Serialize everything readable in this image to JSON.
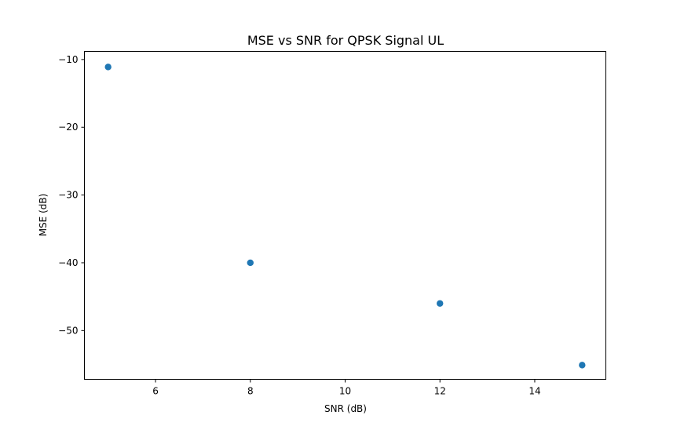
{
  "chart_data": {
    "type": "scatter",
    "title": "MSE vs SNR for QPSK Signal UL",
    "xlabel": "SNR (dB)",
    "ylabel": "MSE (dB)",
    "xlim": [
      4.5,
      15.5
    ],
    "ylim": [
      -57.2,
      -8.8
    ],
    "xticks": [
      6,
      8,
      10,
      12,
      14
    ],
    "xtick_labels": [
      "6",
      "8",
      "10",
      "12",
      "14"
    ],
    "yticks": [
      -10,
      -20,
      -30,
      -40,
      -50
    ],
    "ytick_labels": [
      "−10",
      "−20",
      "−30",
      "−40",
      "−50"
    ],
    "grid": false,
    "series": [
      {
        "color": "#1f77b4",
        "points": [
          {
            "x": 5,
            "y": -11.1
          },
          {
            "x": 8,
            "y": -40.0
          },
          {
            "x": 12,
            "y": -46.0
          },
          {
            "x": 15,
            "y": -55.1
          }
        ]
      }
    ]
  }
}
